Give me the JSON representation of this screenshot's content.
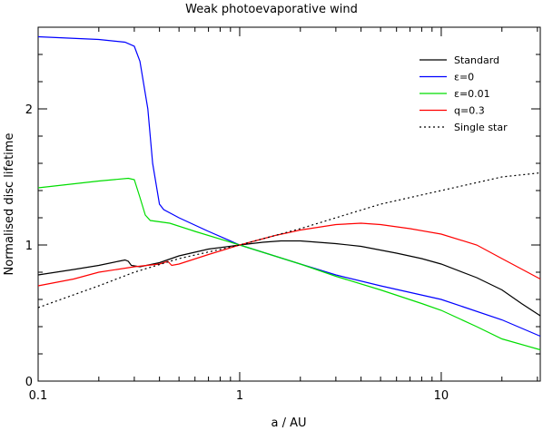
{
  "chart_data": {
    "type": "line",
    "title": "Weak photoevaporative wind",
    "xlabel": "a / AU",
    "ylabel": "Normalised disc lifetime",
    "xscale": "log",
    "xlim": [
      0.1,
      31
    ],
    "ylim": [
      0,
      2.6
    ],
    "x_ticks": [
      {
        "value": 0.1,
        "label": "0.1"
      },
      {
        "value": 1,
        "label": "1"
      },
      {
        "value": 10,
        "label": "10"
      }
    ],
    "y_ticks": [
      {
        "value": 0,
        "label": "0"
      },
      {
        "value": 1,
        "label": "1"
      },
      {
        "value": 2,
        "label": "2"
      }
    ],
    "legend_position": "top-right",
    "grid": false,
    "series": [
      {
        "name": "Standard",
        "color": "#000000",
        "dash": "solid",
        "points": [
          [
            0.1,
            0.78
          ],
          [
            0.15,
            0.82
          ],
          [
            0.2,
            0.85
          ],
          [
            0.25,
            0.88
          ],
          [
            0.27,
            0.89
          ],
          [
            0.28,
            0.88
          ],
          [
            0.29,
            0.85
          ],
          [
            0.32,
            0.84
          ],
          [
            0.4,
            0.87
          ],
          [
            0.5,
            0.92
          ],
          [
            0.7,
            0.97
          ],
          [
            1,
            1.0
          ],
          [
            1.3,
            1.02
          ],
          [
            1.6,
            1.03
          ],
          [
            2,
            1.03
          ],
          [
            3,
            1.01
          ],
          [
            4,
            0.99
          ],
          [
            6,
            0.94
          ],
          [
            8,
            0.9
          ],
          [
            10,
            0.86
          ],
          [
            15,
            0.76
          ],
          [
            20,
            0.67
          ],
          [
            25,
            0.57
          ],
          [
            31,
            0.48
          ]
        ]
      },
      {
        "name": "ε=0",
        "color": "#0000ff",
        "dash": "solid",
        "points": [
          [
            0.1,
            2.53
          ],
          [
            0.2,
            2.51
          ],
          [
            0.27,
            2.49
          ],
          [
            0.3,
            2.46
          ],
          [
            0.32,
            2.35
          ],
          [
            0.35,
            2.0
          ],
          [
            0.37,
            1.6
          ],
          [
            0.4,
            1.3
          ],
          [
            0.42,
            1.26
          ],
          [
            0.5,
            1.2
          ],
          [
            0.7,
            1.1
          ],
          [
            1,
            1.0
          ],
          [
            2,
            0.86
          ],
          [
            3,
            0.78
          ],
          [
            5,
            0.7
          ],
          [
            10,
            0.6
          ],
          [
            20,
            0.45
          ],
          [
            31,
            0.33
          ]
        ]
      },
      {
        "name": "ε=0.01",
        "color": "#00dd00",
        "dash": "solid",
        "points": [
          [
            0.1,
            1.42
          ],
          [
            0.2,
            1.47
          ],
          [
            0.28,
            1.49
          ],
          [
            0.3,
            1.48
          ],
          [
            0.32,
            1.35
          ],
          [
            0.34,
            1.22
          ],
          [
            0.36,
            1.18
          ],
          [
            0.45,
            1.16
          ],
          [
            0.6,
            1.1
          ],
          [
            1,
            1.0
          ],
          [
            2,
            0.86
          ],
          [
            3,
            0.77
          ],
          [
            5,
            0.67
          ],
          [
            8,
            0.57
          ],
          [
            10,
            0.52
          ],
          [
            15,
            0.4
          ],
          [
            20,
            0.31
          ],
          [
            31,
            0.23
          ]
        ]
      },
      {
        "name": "q=0.3",
        "color": "#ff0000",
        "dash": "solid",
        "points": [
          [
            0.1,
            0.7
          ],
          [
            0.15,
            0.75
          ],
          [
            0.2,
            0.8
          ],
          [
            0.3,
            0.84
          ],
          [
            0.4,
            0.86
          ],
          [
            0.44,
            0.88
          ],
          [
            0.46,
            0.85
          ],
          [
            0.5,
            0.86
          ],
          [
            0.7,
            0.93
          ],
          [
            1,
            1.0
          ],
          [
            1.5,
            1.07
          ],
          [
            2,
            1.11
          ],
          [
            3,
            1.15
          ],
          [
            4,
            1.16
          ],
          [
            5,
            1.15
          ],
          [
            7,
            1.12
          ],
          [
            10,
            1.08
          ],
          [
            15,
            1.0
          ],
          [
            20,
            0.9
          ],
          [
            31,
            0.75
          ]
        ]
      },
      {
        "name": "Single star",
        "color": "#000000",
        "dash": "dotted",
        "points": [
          [
            0.1,
            0.54
          ],
          [
            0.2,
            0.7
          ],
          [
            0.3,
            0.8
          ],
          [
            0.5,
            0.9
          ],
          [
            1,
            1.0
          ],
          [
            2,
            1.12
          ],
          [
            3,
            1.2
          ],
          [
            5,
            1.3
          ],
          [
            10,
            1.4
          ],
          [
            20,
            1.5
          ],
          [
            31,
            1.53
          ]
        ]
      }
    ]
  }
}
